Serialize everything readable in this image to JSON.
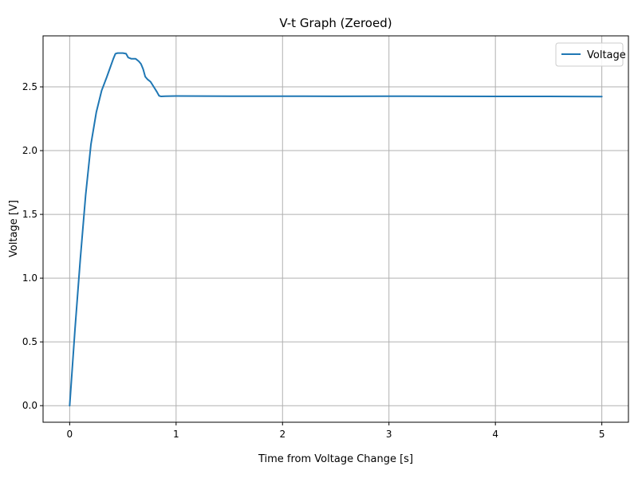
{
  "chart_data": {
    "type": "line",
    "title": "V-t Graph (Zeroed)",
    "xlabel": "Time from Voltage Change [s]",
    "ylabel": "Voltage [V]",
    "xlim": [
      -0.25,
      5.25
    ],
    "ylim": [
      -0.13,
      2.9
    ],
    "xticks": [
      0,
      1,
      2,
      3,
      4,
      5
    ],
    "xtick_labels": [
      "0",
      "1",
      "2",
      "3",
      "4",
      "5"
    ],
    "yticks": [
      0.0,
      0.5,
      1.0,
      1.5,
      2.0,
      2.5
    ],
    "ytick_labels": [
      "0.0",
      "0.5",
      "1.0",
      "1.5",
      "2.0",
      "2.5"
    ],
    "grid": true,
    "legend_position": "top-right",
    "series": [
      {
        "name": "Voltage",
        "color": "#1f77b4",
        "x": [
          0,
          0.05,
          0.1,
          0.15,
          0.2,
          0.25,
          0.3,
          0.35,
          0.38,
          0.41,
          0.43,
          0.45,
          0.47,
          0.5,
          0.53,
          0.55,
          0.58,
          0.62,
          0.65,
          0.67,
          0.69,
          0.71,
          0.73,
          0.76,
          0.79,
          0.82,
          0.84,
          0.86,
          0.9,
          1.0,
          1.5,
          2.0,
          2.5,
          3.0,
          3.5,
          4.0,
          4.5,
          5.0
        ],
        "y": [
          0,
          0.6,
          1.15,
          1.65,
          2.05,
          2.3,
          2.47,
          2.58,
          2.65,
          2.72,
          2.76,
          2.765,
          2.765,
          2.765,
          2.76,
          2.73,
          2.72,
          2.72,
          2.7,
          2.68,
          2.64,
          2.58,
          2.56,
          2.54,
          2.5,
          2.46,
          2.43,
          2.425,
          2.427,
          2.428,
          2.427,
          2.427,
          2.426,
          2.427,
          2.426,
          2.425,
          2.425,
          2.424
        ]
      }
    ]
  }
}
